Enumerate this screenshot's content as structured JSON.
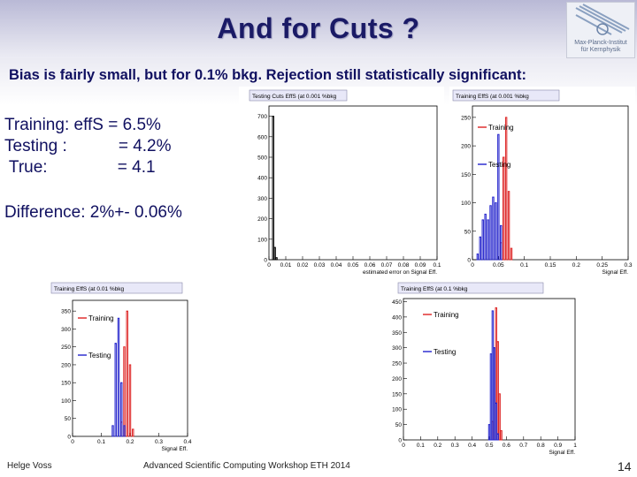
{
  "slide": {
    "title": "And for Cuts ?",
    "subtitle": "Bias is fairly small, but for 0.1% bkg. Rejection still statistically significant:",
    "results": [
      {
        "label": "Training: effS = 6.5%"
      },
      {
        "label": "Testing :           = 4.2%"
      },
      {
        "label": " True:               = 4.1"
      }
    ],
    "difference": "Difference: 2%+- 0.06%",
    "footer_left": "Helge Voss",
    "footer_center": "Advanced Scientific Computing Workshop ETH 2014",
    "page_number": "14"
  },
  "logo": {
    "line1": "Max-Planck-Institut",
    "line2": "für Kernphysik"
  },
  "colors": {
    "title": "#1a1a66",
    "training": "#dd2222",
    "testing": "#2222cc"
  },
  "chart_data": [
    {
      "type": "bar",
      "title": "Testing Cuts EffS (at 0.001 %bkg",
      "xlabel": "estimated error on Signal Eff.",
      "xlim": [
        0,
        0.1
      ],
      "ylim": [
        0,
        750
      ],
      "xticks": [
        "0",
        "0.01",
        "0.02",
        "0.03",
        "0.04",
        "0.05",
        "0.06",
        "0.07",
        "0.08",
        "0.09",
        "0.1"
      ],
      "yticks": [
        "0",
        "100",
        "200",
        "300",
        "400",
        "500",
        "600",
        "700"
      ],
      "series": [
        {
          "name": "error",
          "color": "#000000",
          "x": [
            0.0025,
            0.0035,
            0.0045
          ],
          "values": [
            700,
            60,
            10
          ]
        }
      ]
    },
    {
      "type": "bar",
      "title": "Training EffS (at 0.001 %bkg",
      "xlabel": "Signal Eff.",
      "xlim": [
        0,
        0.3
      ],
      "ylim": [
        0,
        270
      ],
      "xticks": [
        "0",
        "0.05",
        "0.1",
        "0.15",
        "0.2",
        "0.25",
        "0.3"
      ],
      "yticks": [
        "0",
        "50",
        "100",
        "150",
        "200",
        "250"
      ],
      "legend": [
        {
          "name": "Training",
          "color": "#dd2222"
        },
        {
          "name": "Testing",
          "color": "#2222cc"
        }
      ],
      "series": [
        {
          "name": "Training",
          "color": "#dd2222",
          "x": [
            0.055,
            0.06,
            0.065,
            0.07,
            0.075
          ],
          "values": [
            30,
            180,
            250,
            120,
            20
          ]
        },
        {
          "name": "Testing",
          "color": "#2222cc",
          "x": [
            0.01,
            0.015,
            0.02,
            0.025,
            0.03,
            0.035,
            0.04,
            0.045,
            0.05,
            0.055
          ],
          "values": [
            10,
            40,
            70,
            80,
            70,
            95,
            110,
            100,
            220,
            60
          ]
        }
      ]
    },
    {
      "type": "bar",
      "title": "Training EffS (at 0.01 %bkg",
      "xlabel": "Signal Eff.",
      "xlim": [
        0,
        0.4
      ],
      "ylim": [
        0,
        380
      ],
      "xticks": [
        "0",
        "0.1",
        "0.2",
        "0.3",
        "0.4"
      ],
      "yticks": [
        "0",
        "50",
        "100",
        "150",
        "200",
        "250",
        "300",
        "350"
      ],
      "legend": [
        {
          "name": "Training",
          "color": "#dd2222"
        },
        {
          "name": "Testing",
          "color": "#2222cc"
        }
      ],
      "series": [
        {
          "name": "Training",
          "color": "#dd2222",
          "x": [
            0.17,
            0.18,
            0.19,
            0.2,
            0.21
          ],
          "values": [
            40,
            250,
            350,
            200,
            20
          ]
        },
        {
          "name": "Testing",
          "color": "#2222cc",
          "x": [
            0.14,
            0.15,
            0.16,
            0.17,
            0.18
          ],
          "values": [
            30,
            260,
            330,
            150,
            30
          ]
        }
      ]
    },
    {
      "type": "bar",
      "title": "Training EffS (at 0.1 %bkg",
      "xlabel": "Signal Eff.",
      "xlim": [
        0,
        1
      ],
      "ylim": [
        0,
        460
      ],
      "xticks": [
        "0",
        "0.1",
        "0.2",
        "0.3",
        "0.4",
        "0.5",
        "0.6",
        "0.7",
        "0.8",
        "0.9",
        "1"
      ],
      "yticks": [
        "0",
        "50",
        "100",
        "150",
        "200",
        "250",
        "300",
        "350",
        "400",
        "450"
      ],
      "legend": [
        {
          "name": "Training",
          "color": "#dd2222"
        },
        {
          "name": "Testing",
          "color": "#2222cc"
        }
      ],
      "series": [
        {
          "name": "Training",
          "color": "#dd2222",
          "x": [
            0.52,
            0.53,
            0.54,
            0.55,
            0.56,
            0.57
          ],
          "values": [
            60,
            300,
            430,
            320,
            150,
            30
          ]
        },
        {
          "name": "Testing",
          "color": "#2222cc",
          "x": [
            0.5,
            0.51,
            0.52,
            0.53,
            0.54,
            0.55
          ],
          "values": [
            50,
            280,
            420,
            300,
            120,
            20
          ]
        }
      ]
    }
  ]
}
